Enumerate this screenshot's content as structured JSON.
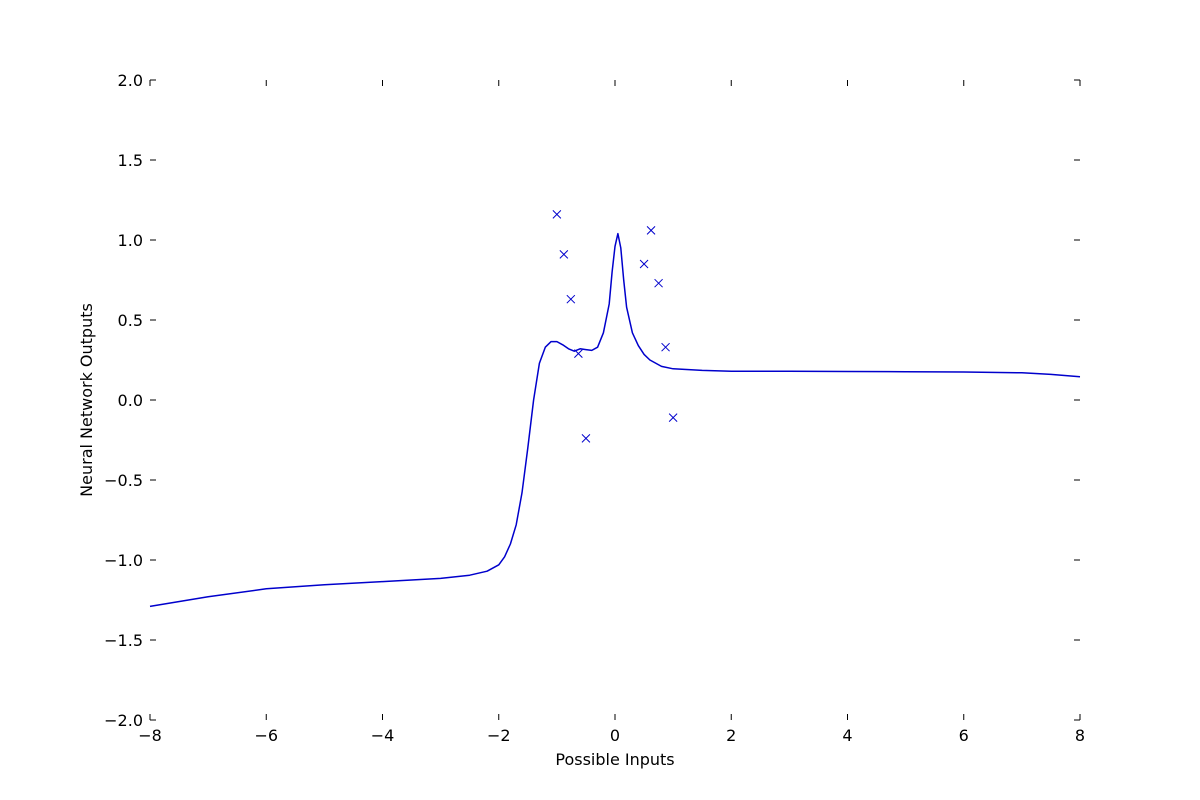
{
  "chart_data": {
    "type": "line",
    "title": "",
    "xlabel": "Possible Inputs",
    "ylabel": "Neural Network Outputs",
    "xlim": [
      -8,
      8
    ],
    "ylim": [
      -2.0,
      2.0
    ],
    "grid": false,
    "x_ticks": [
      -8,
      -6,
      -4,
      -2,
      0,
      2,
      4,
      6,
      8
    ],
    "y_ticks": [
      -2.0,
      -1.5,
      -1.0,
      -0.5,
      0.0,
      0.5,
      1.0,
      1.5,
      2.0
    ],
    "x_tick_labels": [
      "−8",
      "−6",
      "−4",
      "−2",
      "0",
      "2",
      "4",
      "6",
      "8"
    ],
    "y_tick_labels": [
      "−2.0",
      "−1.5",
      "−1.0",
      "−0.5",
      "0.0",
      "0.5",
      "1.0",
      "1.5",
      "2.0"
    ],
    "series": [
      {
        "type": "line",
        "color": "#0000cc",
        "x": [
          -8,
          -7,
          -6,
          -5,
          -4,
          -3,
          -2.5,
          -2.2,
          -2.0,
          -1.9,
          -1.8,
          -1.7,
          -1.6,
          -1.5,
          -1.4,
          -1.3,
          -1.2,
          -1.1,
          -1.0,
          -0.9,
          -0.8,
          -0.7,
          -0.6,
          -0.5,
          -0.4,
          -0.3,
          -0.2,
          -0.1,
          -0.05,
          0.0,
          0.05,
          0.1,
          0.15,
          0.2,
          0.3,
          0.4,
          0.5,
          0.6,
          0.8,
          1.0,
          1.5,
          2.0,
          3.0,
          4.0,
          5.0,
          6.0,
          7.0,
          7.5,
          8.0
        ],
        "y": [
          -1.29,
          -1.23,
          -1.18,
          -1.155,
          -1.135,
          -1.115,
          -1.095,
          -1.07,
          -1.03,
          -0.98,
          -0.9,
          -0.78,
          -0.58,
          -0.3,
          0.0,
          0.23,
          0.33,
          0.365,
          0.365,
          0.345,
          0.32,
          0.305,
          0.32,
          0.315,
          0.31,
          0.33,
          0.42,
          0.6,
          0.8,
          0.96,
          1.04,
          0.95,
          0.75,
          0.58,
          0.42,
          0.34,
          0.285,
          0.25,
          0.21,
          0.195,
          0.185,
          0.18,
          0.18,
          0.178,
          0.177,
          0.175,
          0.17,
          0.16,
          0.145
        ]
      },
      {
        "type": "scatter",
        "marker": "x",
        "color": "#0000cc",
        "x": [
          -1.0,
          -0.88,
          -0.76,
          -0.63,
          -0.5,
          0.5,
          0.62,
          0.75,
          0.87,
          1.0
        ],
        "y": [
          1.16,
          0.91,
          0.63,
          0.29,
          -0.24,
          0.85,
          1.06,
          0.73,
          0.33,
          -0.11
        ]
      }
    ]
  }
}
